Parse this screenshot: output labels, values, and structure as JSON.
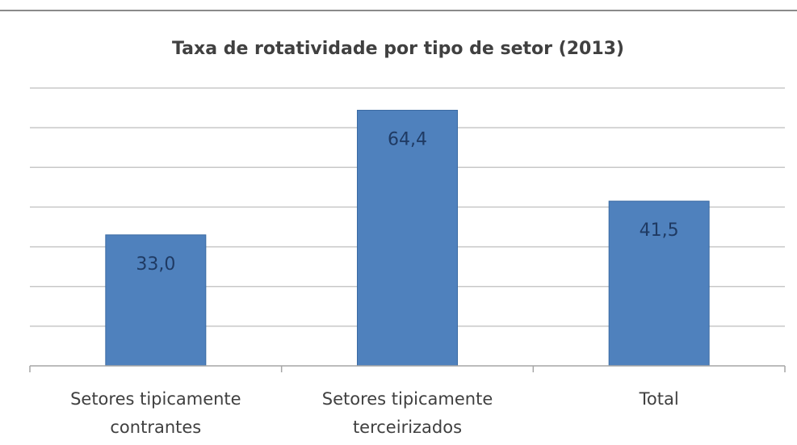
{
  "chart_data": {
    "type": "bar",
    "title": "Taxa de rotatividade por tipo de setor (2013)",
    "categories": [
      [
        "Setores tipicamente",
        "contrantes"
      ],
      [
        "Setores tipicamente",
        "terceirizados"
      ],
      [
        "Total"
      ]
    ],
    "values": [
      33.0,
      64.4,
      41.5
    ],
    "value_labels": [
      "33,0",
      "64,4",
      "41,5"
    ],
    "ylim": [
      0,
      70
    ],
    "gridlines": [
      10,
      20,
      30,
      40,
      50,
      60,
      70
    ],
    "grid": true,
    "legend": "none",
    "colors": {
      "bar": "#4f81bd",
      "bar_edge": "#3a6aa3",
      "label": "#1f3a63",
      "grid": "#c8c8c8",
      "axis": "#a6a6a6",
      "text": "#404040"
    }
  }
}
